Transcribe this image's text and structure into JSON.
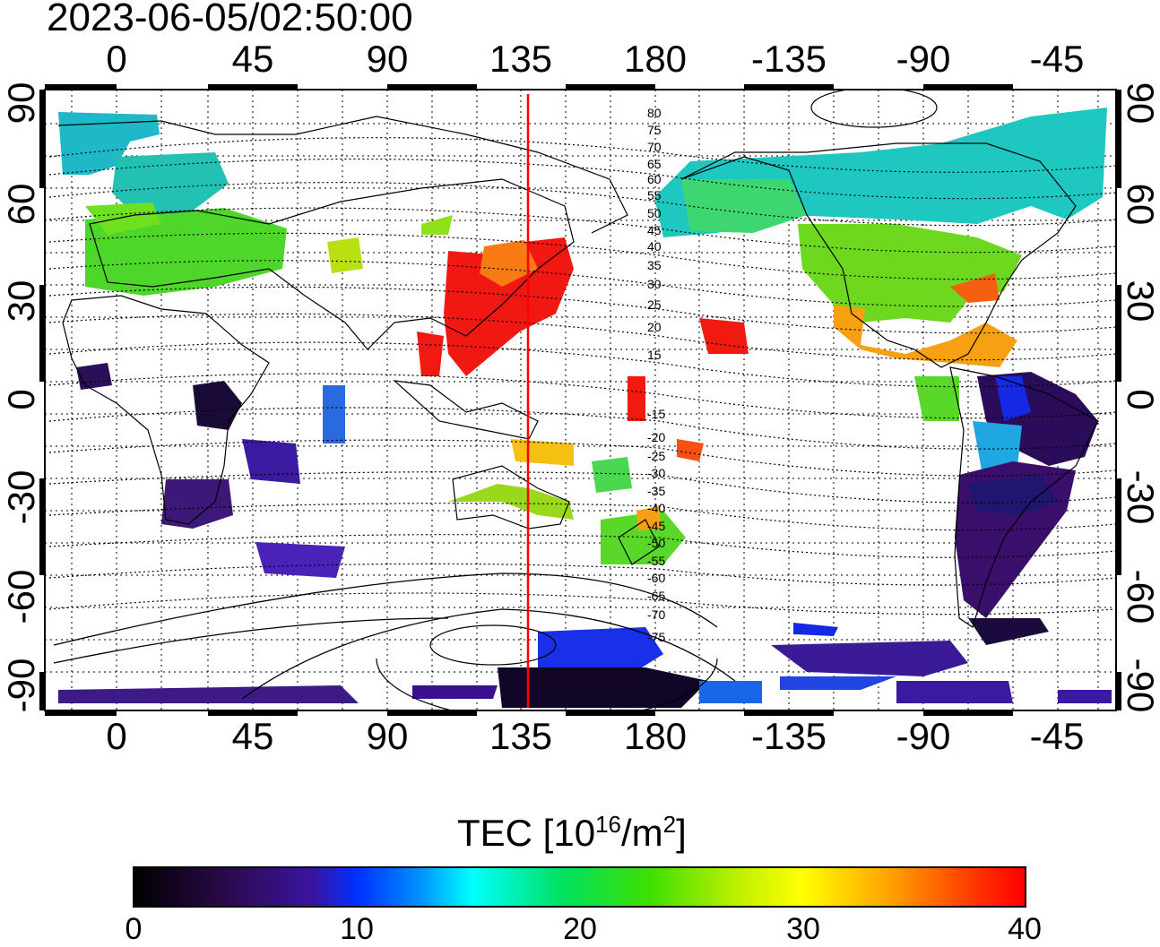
{
  "timestamp": "2023-06-05/02:50:00",
  "lon_ticks": [
    "0",
    "45",
    "90",
    "135",
    "180",
    "-135",
    "-90",
    "-45"
  ],
  "lat_ticks": [
    "90",
    "60",
    "30",
    "0",
    "-30",
    "-60",
    "-90"
  ],
  "colorbar": {
    "title_main": "TEC  [10",
    "title_exp": "16",
    "title_unit": "/m",
    "title_unit_exp": "2",
    "title_end": "]",
    "ticks": [
      "0",
      "10",
      "20",
      "30",
      "40"
    ],
    "range": [
      0,
      40
    ]
  },
  "contour_labels": [
    "80",
    "75",
    "70",
    "65",
    "60",
    "55",
    "50",
    "45",
    "40",
    "35",
    "30",
    "25",
    "20",
    "15",
    "-15",
    "-20",
    "-25",
    "-30",
    "-35",
    "-40",
    "-45",
    "-50",
    "-55",
    "-60",
    "-65",
    "-70",
    "-75"
  ],
  "marker_longitude": 137,
  "colors": {
    "marker_line": "#ff0000",
    "frame": "#000000"
  }
}
